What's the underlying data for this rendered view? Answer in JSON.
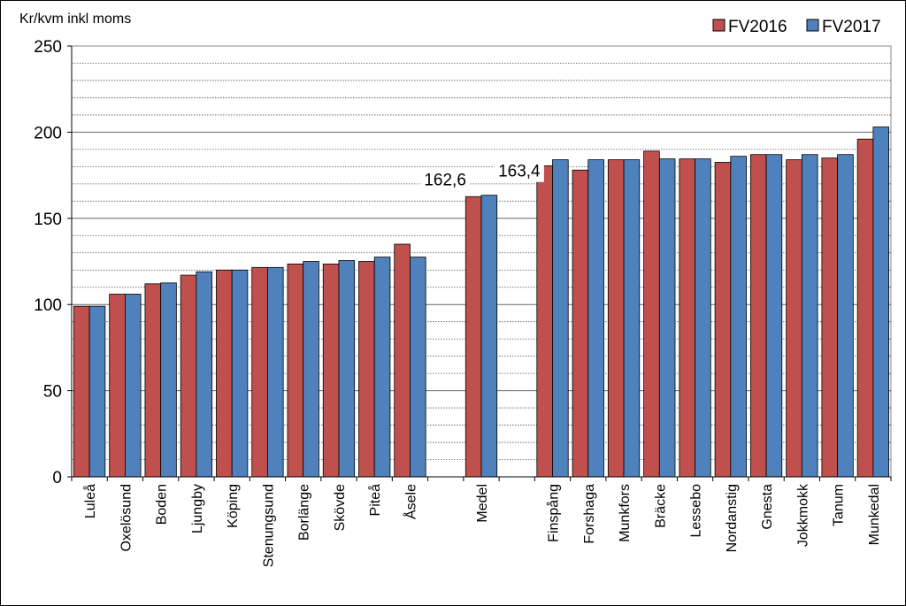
{
  "chart_data": {
    "type": "bar",
    "ylabel": "Kr/kvm inkl moms",
    "ylim": [
      0,
      250
    ],
    "yticks": [
      0,
      50,
      100,
      150,
      200,
      250
    ],
    "grid": true,
    "legend_position": "top-right",
    "categories": [
      "Luleå",
      "Oxelösund",
      "Boden",
      "Ljungby",
      "Köping",
      "Stenungsund",
      "Borlänge",
      "Skövde",
      "Piteå",
      "Åsele",
      "",
      "Medel",
      "",
      "Finspång",
      "Forshaga",
      "Munkfors",
      "Bräcke",
      "Lessebo",
      "Nordanstig",
      "Gnesta",
      "Jokkmokk",
      "Tanum",
      "Munkedal"
    ],
    "series": [
      {
        "name": "FV2016",
        "color": "#c0504d",
        "values": [
          99,
          106,
          112,
          117,
          120,
          121.5,
          123.5,
          123.5,
          125,
          135,
          null,
          162.6,
          null,
          180.5,
          178,
          184,
          189,
          184.5,
          182.5,
          187,
          184,
          185,
          196
        ]
      },
      {
        "name": "FV2017",
        "color": "#4f81bd",
        "values": [
          99,
          106,
          112.5,
          119,
          120,
          121.5,
          125,
          125.5,
          127.5,
          127.5,
          null,
          163.4,
          null,
          184,
          184,
          184,
          184.5,
          184.5,
          186,
          187,
          187,
          187,
          203
        ]
      }
    ],
    "annotations": [
      {
        "text": "162,6",
        "category": "Medel",
        "series": "FV2016"
      },
      {
        "text": "163,4",
        "category": "Medel",
        "series": "FV2017"
      }
    ]
  }
}
